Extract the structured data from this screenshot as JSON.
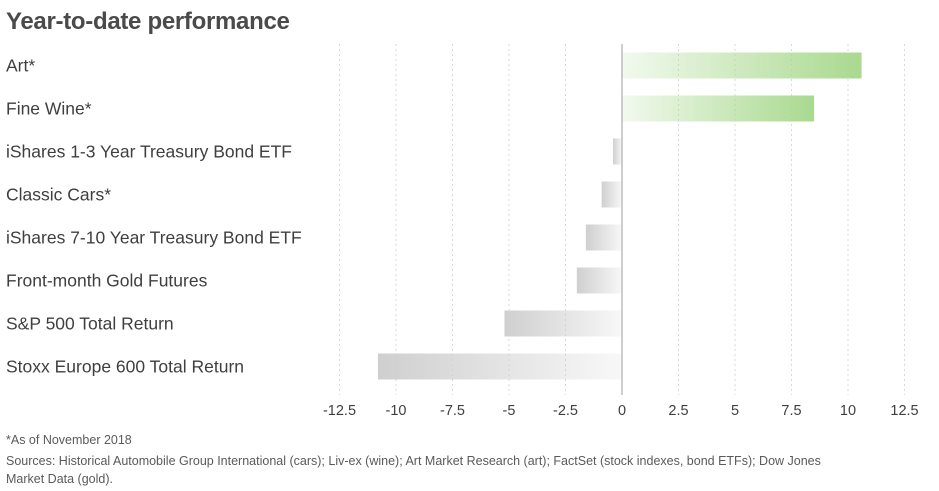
{
  "title": "Year-to-date performance",
  "chart_data": {
    "type": "bar",
    "orientation": "horizontal",
    "title": "Year-to-date performance",
    "categories": [
      "Art*",
      "Fine Wine*",
      "iShares 1-3 Year Treasury Bond ETF",
      "Classic Cars*",
      "iShares 7-10 Year Treasury Bond ETF",
      "Front-month Gold Futures",
      "S&P 500 Total Return",
      "Stoxx Europe 600 Total Return"
    ],
    "values": [
      10.6,
      8.5,
      -0.4,
      -0.9,
      -1.6,
      -2.0,
      -5.2,
      -10.8
    ],
    "xlim": [
      -12.5,
      12.5
    ],
    "x_ticks": [
      "-12.5",
      "-10",
      "-7.5",
      "-5",
      "-2.5",
      "0",
      "2.5",
      "5",
      "7.5",
      "10",
      "12.5"
    ],
    "x_tick_values": [
      -12.5,
      -10,
      -7.5,
      -5,
      -2.5,
      0,
      2.5,
      5,
      7.5,
      10,
      12.5
    ],
    "grid": "vertical dotted",
    "colors": {
      "positive": "#a9d98f",
      "negative": "#cfcfcf",
      "zero_line": "#bdbdbd",
      "grid": "#d9d9d9",
      "label_text": "#3f3f3f"
    }
  },
  "footnotes": {
    "as_of": "*As of November 2018",
    "sources_line1": "Sources: Historical Automobile Group International (cars); Liv-ex (wine); Art Market Research (art); FactSet (stock indexes, bond ETFs); Dow Jones",
    "sources_line2": "Market Data (gold)."
  }
}
